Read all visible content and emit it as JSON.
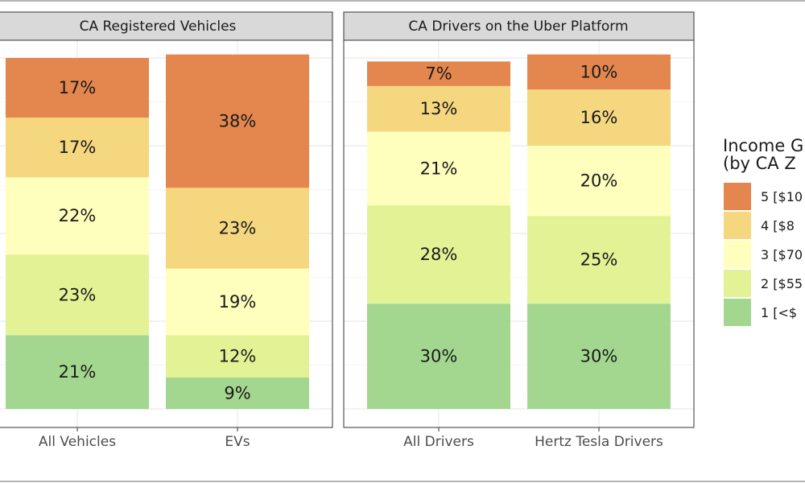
{
  "chart_data": {
    "type": "bar",
    "stacked": true,
    "ylim": [
      0,
      100
    ],
    "grid": true,
    "legend_position": "right",
    "legend": {
      "title_lines": [
        "Income G",
        "(by CA Z"
      ],
      "items": [
        {
          "key": "5",
          "label": "5 [$10",
          "color": "#E3874F"
        },
        {
          "key": "4",
          "label": "4 [$8",
          "color": "#F4D77F"
        },
        {
          "key": "3",
          "label": "3 [$70",
          "color": "#FEFEBD"
        },
        {
          "key": "2",
          "label": "2 [$55",
          "color": "#E4F296"
        },
        {
          "key": "1",
          "label": "1 [<$",
          "color": "#A3D78F"
        }
      ]
    },
    "panels": [
      {
        "title": "CA Registered Vehicles",
        "categories": [
          "All Vehicles",
          "EVs"
        ],
        "bars": [
          {
            "category": "All Vehicles",
            "segments": [
              {
                "key": "1",
                "value": 21,
                "label": "21%"
              },
              {
                "key": "2",
                "value": 23,
                "label": "23%"
              },
              {
                "key": "3",
                "value": 22,
                "label": "22%"
              },
              {
                "key": "4",
                "value": 17,
                "label": "17%"
              },
              {
                "key": "5",
                "value": 17,
                "label": "17%"
              }
            ]
          },
          {
            "category": "EVs",
            "segments": [
              {
                "key": "1",
                "value": 9,
                "label": "9%"
              },
              {
                "key": "2",
                "value": 12,
                "label": "12%"
              },
              {
                "key": "3",
                "value": 19,
                "label": "19%"
              },
              {
                "key": "4",
                "value": 23,
                "label": "23%"
              },
              {
                "key": "5",
                "value": 38,
                "label": "38%"
              }
            ]
          }
        ]
      },
      {
        "title": "CA Drivers on the Uber Platform",
        "categories": [
          "All Drivers",
          "Hertz Tesla Drivers"
        ],
        "bars": [
          {
            "category": "All Drivers",
            "segments": [
              {
                "key": "1",
                "value": 30,
                "label": "30%"
              },
              {
                "key": "2",
                "value": 28,
                "label": "28%"
              },
              {
                "key": "3",
                "value": 21,
                "label": "21%"
              },
              {
                "key": "4",
                "value": 13,
                "label": "13%"
              },
              {
                "key": "5",
                "value": 7,
                "label": "7%"
              }
            ]
          },
          {
            "category": "Hertz Tesla Drivers",
            "segments": [
              {
                "key": "1",
                "value": 30,
                "label": "30%"
              },
              {
                "key": "2",
                "value": 25,
                "label": "25%"
              },
              {
                "key": "3",
                "value": 20,
                "label": "20%"
              },
              {
                "key": "4",
                "value": 16,
                "label": "16%"
              },
              {
                "key": "5",
                "value": 10,
                "label": "10%"
              }
            ]
          }
        ]
      }
    ]
  }
}
